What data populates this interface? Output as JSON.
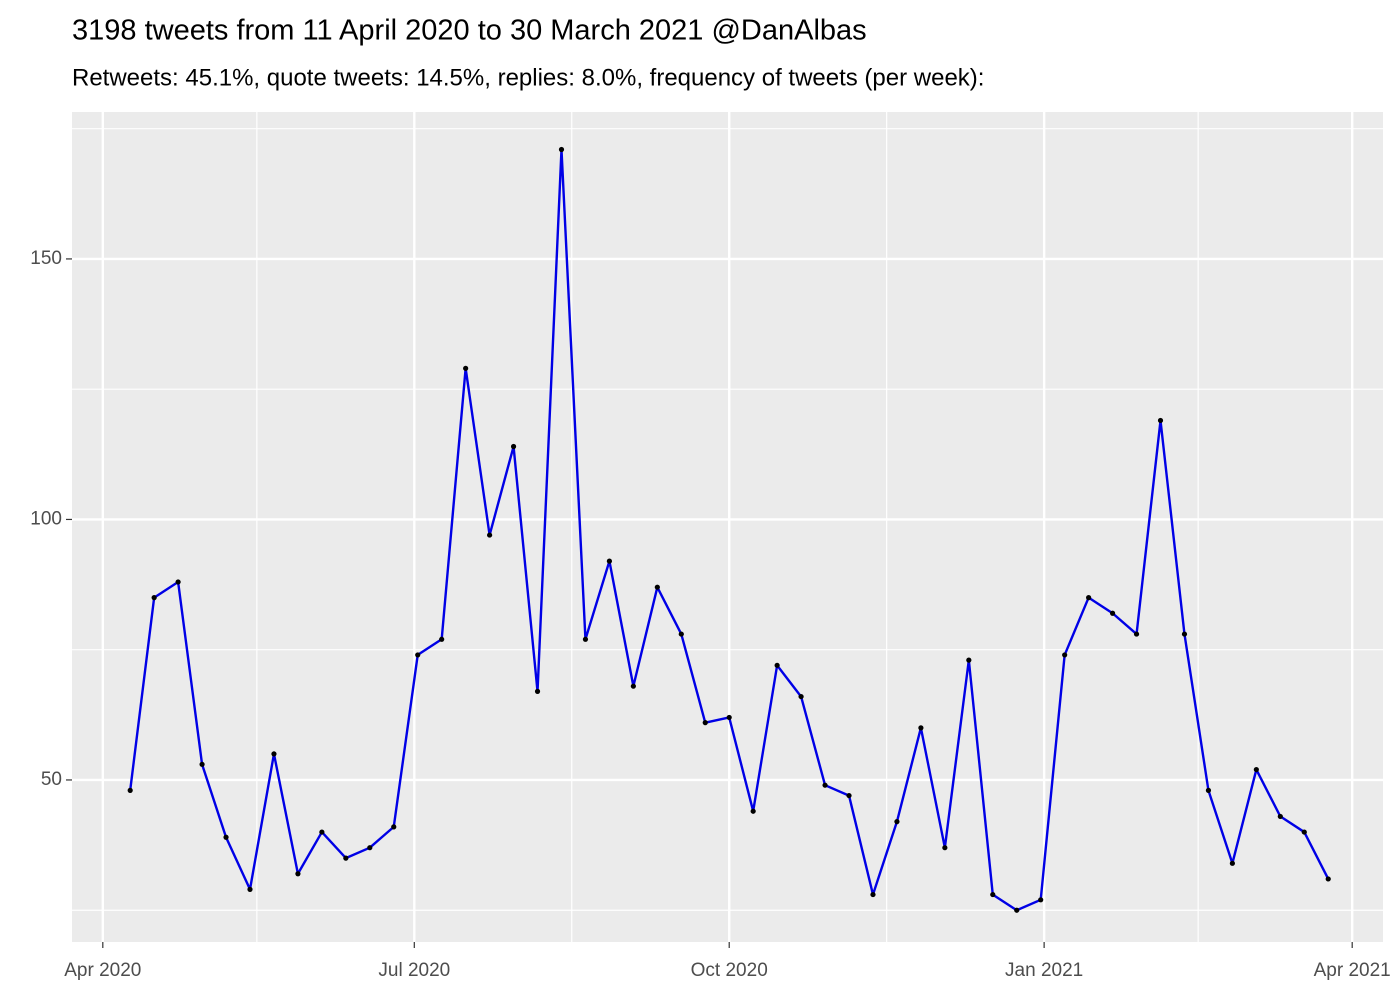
{
  "chart_data": {
    "type": "line",
    "title": "3198 tweets from 11 April 2020 to 30 March 2021 @DanAlbas",
    "subtitle": "Retweets: 45.1%, quote tweets: 14.5%, replies: 8.0%, frequency of tweets (per week):",
    "x": [
      "2020-04-09",
      "2020-04-16",
      "2020-04-23",
      "2020-04-30",
      "2020-05-07",
      "2020-05-14",
      "2020-05-21",
      "2020-05-28",
      "2020-06-04",
      "2020-06-11",
      "2020-06-18",
      "2020-06-25",
      "2020-07-02",
      "2020-07-09",
      "2020-07-16",
      "2020-07-23",
      "2020-07-30",
      "2020-08-06",
      "2020-08-13",
      "2020-08-20",
      "2020-08-27",
      "2020-09-03",
      "2020-09-10",
      "2020-09-17",
      "2020-09-24",
      "2020-10-01",
      "2020-10-08",
      "2020-10-15",
      "2020-10-22",
      "2020-10-29",
      "2020-11-05",
      "2020-11-12",
      "2020-11-19",
      "2020-11-26",
      "2020-12-03",
      "2020-12-10",
      "2020-12-17",
      "2020-12-24",
      "2020-12-31",
      "2021-01-07",
      "2021-01-14",
      "2021-01-21",
      "2021-01-28",
      "2021-02-04",
      "2021-02-11",
      "2021-02-18",
      "2021-02-25",
      "2021-03-04",
      "2021-03-11",
      "2021-03-18",
      "2021-03-25"
    ],
    "values": [
      48,
      85,
      88,
      53,
      39,
      29,
      55,
      32,
      40,
      35,
      37,
      41,
      74,
      77,
      129,
      97,
      114,
      67,
      171,
      77,
      92,
      68,
      87,
      78,
      61,
      62,
      44,
      72,
      66,
      49,
      47,
      28,
      42,
      60,
      37,
      73,
      28,
      25,
      27,
      74,
      85,
      82,
      78,
      119,
      78,
      48,
      34,
      52,
      43,
      40,
      31
    ],
    "color": "#0000e6",
    "point_color": "#000000",
    "xlim": [
      "2020-03-23",
      "2021-04-10"
    ],
    "xticks": [
      {
        "value": "2020-04-01",
        "label": "Apr 2020"
      },
      {
        "value": "2020-07-01",
        "label": "Jul 2020"
      },
      {
        "value": "2020-10-01",
        "label": "Oct 2020"
      },
      {
        "value": "2021-01-01",
        "label": "Jan 2021"
      },
      {
        "value": "2021-04-01",
        "label": "Apr 2021"
      }
    ],
    "xminorticks": [
      "2020-05-16",
      "2020-08-16",
      "2020-11-16",
      "2021-02-15"
    ],
    "ylim": [
      18.9,
      178.2
    ],
    "yticks": [
      50,
      100,
      150
    ],
    "yminorticks": [
      25,
      75,
      125,
      175
    ],
    "grid": true
  }
}
